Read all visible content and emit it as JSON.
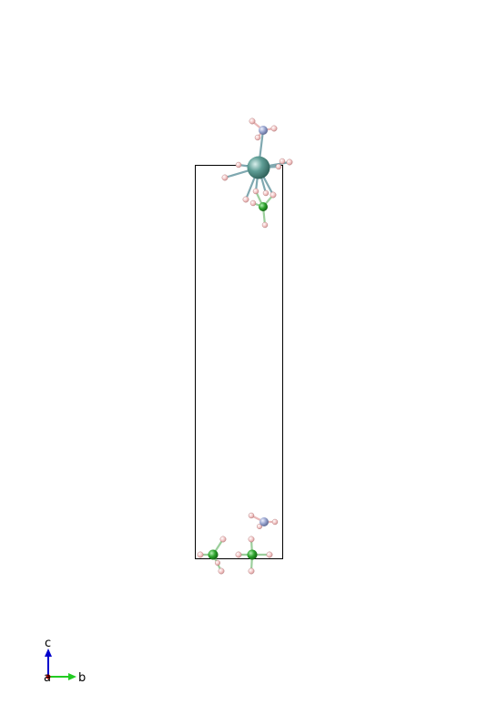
{
  "axes": {
    "c_label": "c",
    "a_label": "a",
    "b_label": "b",
    "colors": {
      "a": "#cc0000",
      "b": "#22cc22",
      "c": "#0000cc"
    }
  },
  "colors": {
    "cell_edge": "#000000",
    "metal": "#5f9e96",
    "nitrogen": "#9aa6d0",
    "boron": "#2ea52e",
    "hydrogen": "#f3c4c4"
  }
}
